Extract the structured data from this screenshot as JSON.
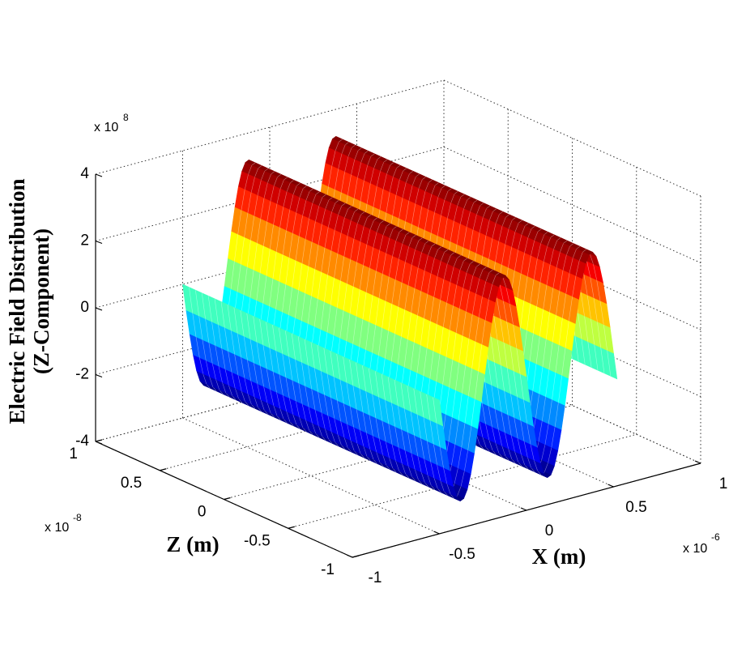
{
  "chart_data": {
    "type": "surface3d",
    "y_label": [
      "Electric Field Distribution",
      "(Z-Component)"
    ],
    "x_label": "X (m)",
    "depth_label": "Z (m)",
    "y_exponent": {
      "base": "x 10",
      "power": "8"
    },
    "depth_exponent": {
      "base": "x 10",
      "power": "-8"
    },
    "x_exponent": {
      "base": "x 10",
      "power": "-6"
    },
    "xlim": [
      -1,
      1
    ],
    "xticks": [
      -1,
      -0.5,
      0,
      0.5,
      1
    ],
    "depth_lim": [
      -1,
      1
    ],
    "depth_ticks": [
      -1,
      -0.5,
      0,
      0.5,
      1
    ],
    "ylim": [
      -4,
      4
    ],
    "yticks": [
      -4,
      -2,
      0,
      2,
      4
    ],
    "grid": true,
    "colormap": "jet",
    "x": [
      -0.5,
      -0.48,
      -0.46,
      -0.44,
      -0.42,
      -0.4,
      -0.38,
      -0.36,
      -0.34,
      -0.32,
      -0.3,
      -0.28,
      -0.26,
      -0.24,
      -0.22,
      -0.2,
      -0.18,
      -0.16,
      -0.14,
      -0.12,
      -0.1,
      -0.08,
      -0.06,
      -0.04,
      -0.02,
      0,
      0.02,
      0.04,
      0.06,
      0.08,
      0.1,
      0.12,
      0.14,
      0.16,
      0.18,
      0.2,
      0.22,
      0.24,
      0.26,
      0.28,
      0.3,
      0.32,
      0.34,
      0.36,
      0.38,
      0.4,
      0.42,
      0.44,
      0.46,
      0.48,
      0.5,
      0.52
    ],
    "values": [
      0,
      -0.8,
      -1.54,
      -2.19,
      -2.7,
      -3.04,
      -3.19,
      -3.14,
      -2.9,
      -2.47,
      -1.88,
      -1.18,
      -0.4,
      0.4,
      1.18,
      1.88,
      2.47,
      2.9,
      3.14,
      3.19,
      3.04,
      2.7,
      2.19,
      1.54,
      0.8,
      0,
      -0.8,
      -1.54,
      -2.19,
      -2.7,
      -3.04,
      -3.19,
      -3.14,
      -2.9,
      -2.47,
      -1.88,
      -1.18,
      -0.4,
      0.4,
      1.18,
      1.88,
      2.47,
      2.9,
      3.14,
      3.19,
      3.04,
      2.7,
      2.19,
      1.54,
      0.8,
      0,
      -0.8
    ]
  }
}
